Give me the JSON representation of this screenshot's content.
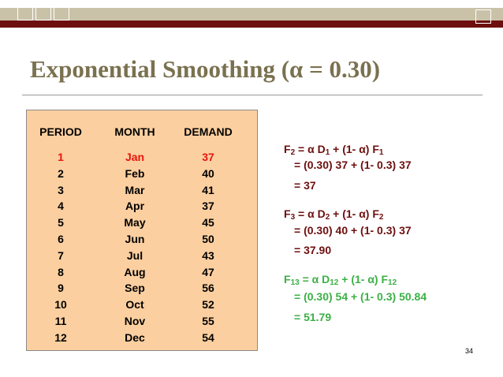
{
  "title": "Exponential Smoothing (α = 0.30)",
  "table": {
    "headers": [
      "PERIOD",
      "MONTH",
      "DEMAND"
    ],
    "rows": [
      [
        "1",
        "Jan",
        "37"
      ],
      [
        "2",
        "Feb",
        "40"
      ],
      [
        "3",
        "Mar",
        "41"
      ],
      [
        "4",
        "Apr",
        "37"
      ],
      [
        "5",
        "May",
        "45"
      ],
      [
        "6",
        "Jun",
        "50"
      ],
      [
        "7",
        "Jul",
        "43"
      ],
      [
        "8",
        "Aug",
        "47"
      ],
      [
        "9",
        "Sep",
        "56"
      ],
      [
        "10",
        "Oct",
        "52"
      ],
      [
        "11",
        "Nov",
        "55"
      ],
      [
        "12",
        "Dec",
        "54"
      ]
    ],
    "highlight_color": "#e8150e"
  },
  "equations": {
    "f2": {
      "lhs": "F",
      "lhs_sub": "2",
      "term_a": "= α D",
      "term_a_sub": "1",
      "term_b": " + (1- α) F",
      "term_b_sub": "1",
      "line2": "= (0.30) 37 + (1- 0.3) 37",
      "line3": "= 37"
    },
    "f3": {
      "lhs": "F",
      "lhs_sub": "3",
      "term_a": "= α D",
      "term_a_sub": "2",
      "term_b": " + (1- α) F",
      "term_b_sub": "2",
      "line2": "= (0.30) 40 + (1- 0.3) 37",
      "line3": "= 37.90"
    },
    "f13": {
      "lhs": "F",
      "lhs_sub": "13",
      "term_a": "= α D",
      "term_a_sub": "12",
      "term_b": " + (1- α) F",
      "term_b_sub": "12",
      "line2": "= (0.30) 54 + (1- 0.3) 50.84",
      "line3": "= 51.79"
    }
  },
  "page_number": "34",
  "colors": {
    "title": "#7a714f",
    "brand_bar": "#6e0f0f",
    "table_bg": "#fbcf9f",
    "eq_brown": "#6e0f0f",
    "eq_green": "#3bb045"
  }
}
